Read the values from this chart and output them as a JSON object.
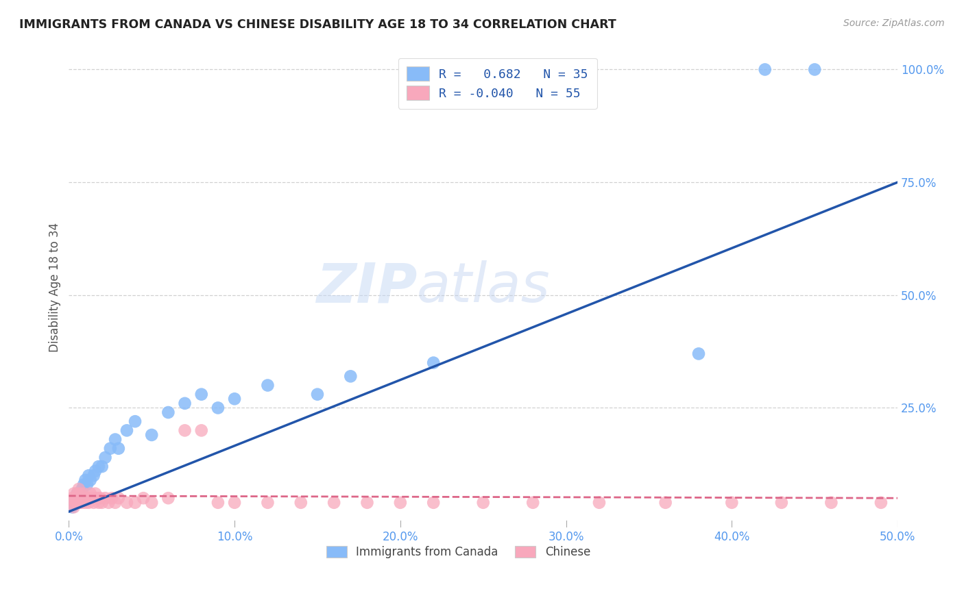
{
  "title": "IMMIGRANTS FROM CANADA VS CHINESE DISABILITY AGE 18 TO 34 CORRELATION CHART",
  "source": "Source: ZipAtlas.com",
  "ylabel": "Disability Age 18 to 34",
  "xlim": [
    0.0,
    0.5
  ],
  "ylim": [
    0.0,
    1.05
  ],
  "xtick_labels": [
    "0.0%",
    "10.0%",
    "20.0%",
    "30.0%",
    "40.0%",
    "50.0%"
  ],
  "xtick_vals": [
    0.0,
    0.1,
    0.2,
    0.3,
    0.4,
    0.5
  ],
  "ytick_labels": [
    "25.0%",
    "50.0%",
    "75.0%",
    "100.0%"
  ],
  "ytick_vals": [
    0.25,
    0.5,
    0.75,
    1.0
  ],
  "ytick_color": "#5599ee",
  "xtick_color": "#5599ee",
  "canada_color": "#88bbf8",
  "chinese_color": "#f8a8bc",
  "canada_line_color": "#2255aa",
  "chinese_line_color": "#dd6688",
  "R_canada": 0.682,
  "N_canada": 35,
  "R_chinese": -0.04,
  "N_chinese": 55,
  "watermark_zip": "ZIP",
  "watermark_atlas": "atlas",
  "canada_scatter_x": [
    0.002,
    0.003,
    0.004,
    0.005,
    0.006,
    0.007,
    0.008,
    0.009,
    0.01,
    0.011,
    0.012,
    0.013,
    0.015,
    0.016,
    0.018,
    0.02,
    0.022,
    0.025,
    0.028,
    0.03,
    0.035,
    0.04,
    0.05,
    0.06,
    0.07,
    0.08,
    0.09,
    0.1,
    0.12,
    0.15,
    0.17,
    0.22,
    0.38,
    0.42,
    0.45
  ],
  "canada_scatter_y": [
    0.03,
    0.04,
    0.05,
    0.06,
    0.05,
    0.06,
    0.07,
    0.08,
    0.09,
    0.08,
    0.1,
    0.09,
    0.1,
    0.11,
    0.12,
    0.12,
    0.14,
    0.16,
    0.18,
    0.16,
    0.2,
    0.22,
    0.19,
    0.24,
    0.26,
    0.28,
    0.25,
    0.27,
    0.3,
    0.28,
    0.32,
    0.35,
    0.37,
    1.0,
    1.0
  ],
  "chinese_scatter_x": [
    0.001,
    0.002,
    0.003,
    0.003,
    0.004,
    0.004,
    0.005,
    0.005,
    0.006,
    0.006,
    0.007,
    0.007,
    0.008,
    0.008,
    0.009,
    0.009,
    0.01,
    0.011,
    0.012,
    0.013,
    0.014,
    0.015,
    0.016,
    0.017,
    0.018,
    0.019,
    0.02,
    0.022,
    0.024,
    0.026,
    0.028,
    0.03,
    0.035,
    0.04,
    0.045,
    0.05,
    0.06,
    0.07,
    0.08,
    0.09,
    0.1,
    0.12,
    0.14,
    0.16,
    0.18,
    0.2,
    0.22,
    0.25,
    0.28,
    0.32,
    0.36,
    0.4,
    0.43,
    0.46,
    0.49
  ],
  "chinese_scatter_y": [
    0.04,
    0.05,
    0.03,
    0.06,
    0.04,
    0.05,
    0.04,
    0.06,
    0.05,
    0.07,
    0.04,
    0.06,
    0.05,
    0.04,
    0.06,
    0.05,
    0.04,
    0.05,
    0.04,
    0.06,
    0.05,
    0.04,
    0.06,
    0.05,
    0.04,
    0.05,
    0.04,
    0.05,
    0.04,
    0.05,
    0.04,
    0.05,
    0.04,
    0.04,
    0.05,
    0.04,
    0.05,
    0.2,
    0.2,
    0.04,
    0.04,
    0.04,
    0.04,
    0.04,
    0.04,
    0.04,
    0.04,
    0.04,
    0.04,
    0.04,
    0.04,
    0.04,
    0.04,
    0.04,
    0.04
  ],
  "legend_label_canada": "R =   0.682   N = 35",
  "legend_label_chinese": "R = -0.040   N = 55",
  "bottom_legend_canada": "Immigrants from Canada",
  "bottom_legend_chinese": "Chinese"
}
